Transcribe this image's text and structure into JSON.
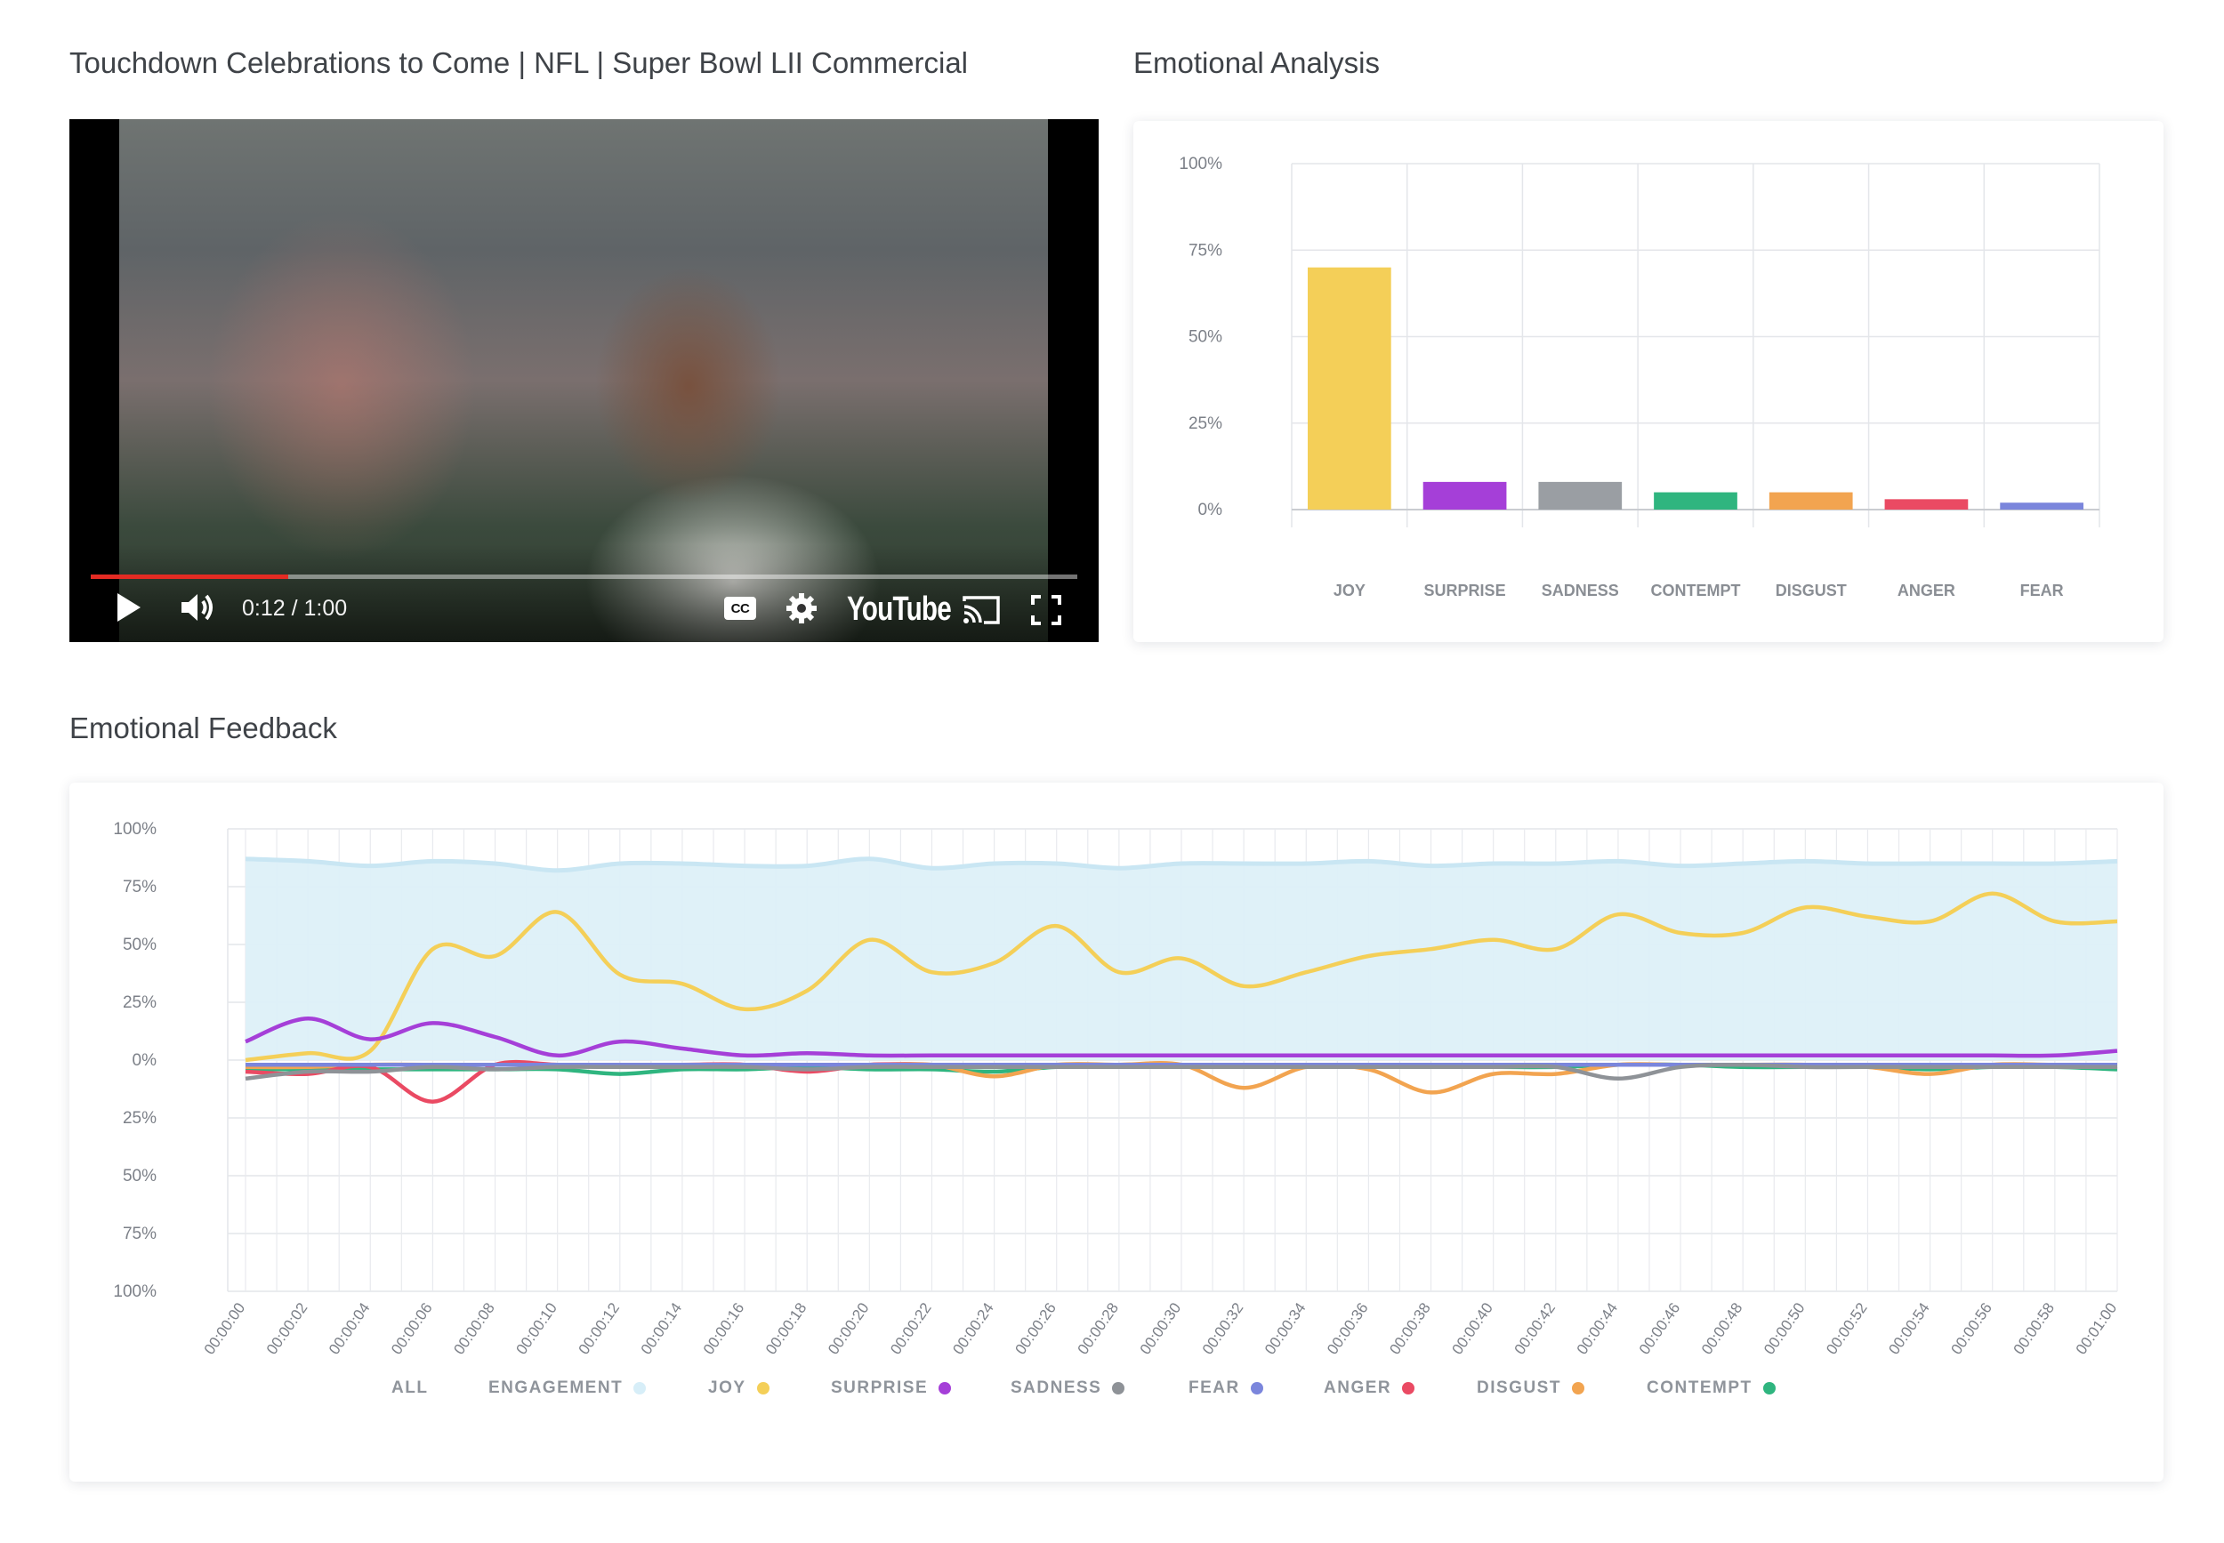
{
  "video": {
    "title": "Touchdown Celebrations to Come | NFL | Super Bowl LII Commercial",
    "time_display": "0:12 / 1:00",
    "progress": 0.2,
    "brand": "YouTube",
    "controls": {
      "play": "play-icon",
      "volume": "volume-icon",
      "captions": "CC",
      "settings": "gear-icon",
      "cast": "cast-icon",
      "fullscreen": "fullscreen-icon"
    }
  },
  "analysis": {
    "title": "Emotional Analysis"
  },
  "feedback": {
    "title": "Emotional Feedback",
    "legend": [
      {
        "label": "ALL",
        "color": ""
      },
      {
        "label": "ENGAGEMENT",
        "color": "#d7eef8"
      },
      {
        "label": "JOY",
        "color": "#f4cf58"
      },
      {
        "label": "SURPRISE",
        "color": "#a53fd8"
      },
      {
        "label": "SADNESS",
        "color": "#8e9297"
      },
      {
        "label": "FEAR",
        "color": "#7b86dc"
      },
      {
        "label": "ANGER",
        "color": "#ea4a63"
      },
      {
        "label": "DISGUST",
        "color": "#f2a450"
      },
      {
        "label": "CONTEMPT",
        "color": "#2fb57f"
      }
    ]
  },
  "chart_data": [
    {
      "type": "bar",
      "categories": [
        "JOY",
        "SURPRISE",
        "SADNESS",
        "CONTEMPT",
        "DISGUST",
        "ANGER",
        "FEAR"
      ],
      "values": [
        70,
        8,
        8,
        5,
        5,
        3,
        2
      ],
      "colors": [
        "#f4cf58",
        "#a53fd8",
        "#9a9ea3",
        "#2fb57f",
        "#f2a450",
        "#ea4a63",
        "#7b86dc"
      ],
      "ylim": [
        0,
        100
      ],
      "yticks": [
        "100%",
        "75%",
        "50%",
        "25%",
        "0%"
      ],
      "grid": true
    },
    {
      "type": "line",
      "x": [
        "00:00:00",
        "00:00:02",
        "00:00:04",
        "00:00:06",
        "00:00:08",
        "00:00:10",
        "00:00:12",
        "00:00:14",
        "00:00:16",
        "00:00:18",
        "00:00:20",
        "00:00:22",
        "00:00:24",
        "00:00:26",
        "00:00:28",
        "00:00:30",
        "00:00:32",
        "00:00:34",
        "00:00:36",
        "00:00:38",
        "00:00:40",
        "00:00:42",
        "00:00:44",
        "00:00:46",
        "00:00:48",
        "00:00:50",
        "00:00:52",
        "00:00:54",
        "00:00:56",
        "00:00:58",
        "00:01:00"
      ],
      "ylim": [
        -100,
        100
      ],
      "yticks": [
        "100%",
        "75%",
        "50%",
        "25%",
        "0%",
        "25%",
        "50%",
        "75%",
        "100%"
      ],
      "grid": true,
      "series": [
        {
          "name": "ENGAGEMENT",
          "type": "area",
          "values": [
            87,
            86,
            84,
            86,
            85,
            82,
            85,
            85,
            84,
            84,
            87,
            83,
            85,
            85,
            83,
            85,
            85,
            85,
            86,
            84,
            85,
            85,
            86,
            84,
            85,
            86,
            85,
            85,
            85,
            85,
            86
          ]
        },
        {
          "name": "JOY",
          "values": [
            0,
            3,
            4,
            48,
            45,
            64,
            37,
            33,
            22,
            30,
            52,
            38,
            42,
            58,
            38,
            44,
            32,
            38,
            45,
            48,
            52,
            48,
            63,
            55,
            55,
            66,
            62,
            60,
            72,
            60,
            60
          ]
        },
        {
          "name": "SURPRISE",
          "values": [
            8,
            18,
            9,
            16,
            10,
            2,
            8,
            5,
            2,
            3,
            2,
            2,
            2,
            2,
            2,
            2,
            2,
            2,
            2,
            2,
            2,
            2,
            2,
            2,
            2,
            2,
            2,
            2,
            2,
            2,
            4
          ]
        },
        {
          "name": "SADNESS",
          "values": [
            -8,
            -5,
            -5,
            -3,
            -4,
            -3,
            -3,
            -3,
            -3,
            -4,
            -3,
            -3,
            -3,
            -3,
            -3,
            -3,
            -3,
            -3,
            -3,
            -3,
            -3,
            -3,
            -8,
            -3,
            -2,
            -3,
            -3,
            -3,
            -3,
            -3,
            -3
          ]
        },
        {
          "name": "FEAR",
          "values": [
            -2,
            -2,
            -2,
            -2,
            -2,
            -2,
            -2,
            -2,
            -2,
            -2,
            -2,
            -2,
            -2,
            -2,
            -2,
            -2,
            -2,
            -2,
            -2,
            -2,
            -2,
            -2,
            -2,
            -2,
            -2,
            -2,
            -2,
            -2,
            -2,
            -2,
            -2
          ]
        },
        {
          "name": "ANGER",
          "values": [
            -5,
            -6,
            -3,
            -18,
            -2,
            -2,
            -2,
            -2,
            -2,
            -5,
            -2,
            -2,
            -2,
            -2,
            -2,
            -2,
            -2,
            -2,
            -2,
            -2,
            -2,
            -2,
            -2,
            -2,
            -2,
            -2,
            -2,
            -2,
            -2,
            -2,
            -2
          ]
        },
        {
          "name": "DISGUST",
          "values": [
            -3,
            -3,
            -2,
            -2,
            -2,
            -2,
            -2,
            -2,
            -2,
            -2,
            -2,
            -2,
            -7,
            -2,
            -2,
            -2,
            -12,
            -3,
            -4,
            -14,
            -6,
            -6,
            -2,
            -2,
            -2,
            -2,
            -3,
            -6,
            -2,
            -2,
            -2
          ]
        },
        {
          "name": "CONTEMPT",
          "values": [
            -4,
            -4,
            -4,
            -4,
            -4,
            -4,
            -6,
            -4,
            -4,
            -3,
            -4,
            -4,
            -5,
            -3,
            -3,
            -3,
            -3,
            -3,
            -3,
            -3,
            -3,
            -3,
            -2,
            -2,
            -3,
            -3,
            -3,
            -4,
            -3,
            -3,
            -4
          ]
        }
      ]
    }
  ]
}
